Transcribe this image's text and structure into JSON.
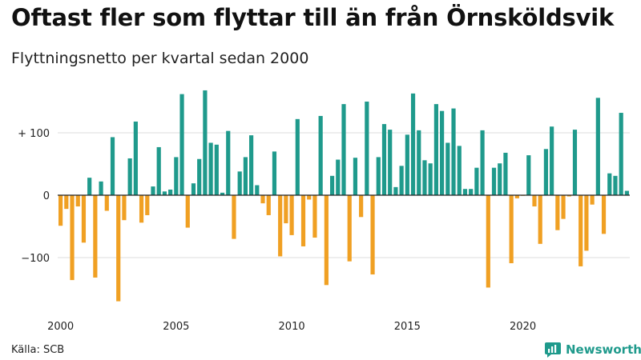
{
  "title": "Oftast fler som flyttar till än från Örnsköldsvik",
  "subtitle": "Flyttningsnetto per kvartal sedan 2000",
  "source": "Källa: SCB",
  "brand": "Newsworthy",
  "colors": {
    "positive": "#1f9a8c",
    "negative": "#f0a023",
    "grid": "#dddddd",
    "baseline": "#222222"
  },
  "chart_data": {
    "type": "bar",
    "title": "Oftast fler som flyttar till än från Örnsköldsvik",
    "subtitle": "Flyttningsnetto per kvartal sedan 2000",
    "xlabel": "",
    "ylabel": "",
    "grid": true,
    "ylim": [
      -175,
      175
    ],
    "yticks": [
      {
        "value": 100,
        "label": "+ 100"
      },
      {
        "value": 0,
        "label": "0"
      },
      {
        "value": -100,
        "label": "−100"
      }
    ],
    "xticks": [
      "2000",
      "2005",
      "2010",
      "2015",
      "2020"
    ],
    "start_year": 2000,
    "values": [
      -49,
      -22,
      -136,
      -18,
      -76,
      28,
      -132,
      22,
      -25,
      93,
      -170,
      -40,
      59,
      118,
      -44,
      -32,
      14,
      77,
      6,
      9,
      61,
      162,
      -52,
      19,
      58,
      168,
      84,
      81,
      4,
      103,
      -70,
      38,
      61,
      96,
      16,
      -13,
      -32,
      70,
      -98,
      -45,
      -64,
      122,
      -82,
      -7,
      -68,
      127,
      -144,
      31,
      57,
      146,
      -106,
      60,
      -35,
      150,
      -127,
      61,
      114,
      105,
      13,
      47,
      97,
      163,
      104,
      56,
      51,
      146,
      135,
      84,
      139,
      79,
      10,
      10,
      44,
      104,
      -148,
      44,
      51,
      68,
      -109,
      -5,
      -1,
      64,
      -18,
      -78,
      74,
      110,
      -56,
      -38,
      -2,
      105,
      -114,
      -89,
      -15,
      156,
      -62,
      35,
      31,
      132,
      7
    ]
  }
}
